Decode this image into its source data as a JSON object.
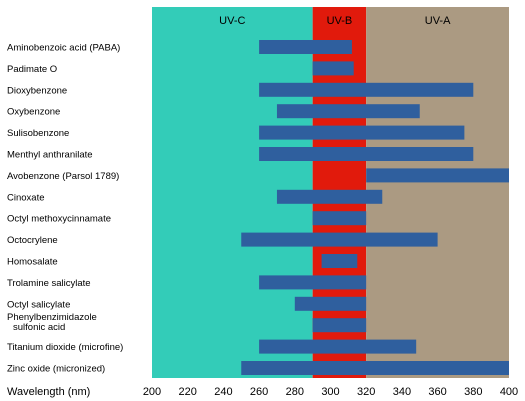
{
  "chart_data": {
    "type": "bar",
    "orientation": "horizontal-range",
    "title": "",
    "xlabel": "Wavelength (nm)",
    "ylabel": "",
    "xlim": [
      200,
      400
    ],
    "xticks": [
      200,
      220,
      240,
      260,
      280,
      300,
      320,
      340,
      360,
      380,
      400
    ],
    "regions": [
      {
        "label": "UV-C",
        "start": 200,
        "end": 290,
        "color": "#33ccb8"
      },
      {
        "label": "UV-B",
        "start": 290,
        "end": 320,
        "color": "#e11a0c"
      },
      {
        "label": "UV-A",
        "start": 320,
        "end": 400,
        "color": "#ab9a82"
      }
    ],
    "bar_color": "#2f5f9e",
    "categories": [
      {
        "label": "Aminobenzoic acid (PABA)",
        "start": 260,
        "end": 312
      },
      {
        "label": "Padimate O",
        "start": 290,
        "end": 313
      },
      {
        "label": "Dioxybenzone",
        "start": 260,
        "end": 380
      },
      {
        "label": "Oxybenzone",
        "start": 270,
        "end": 350
      },
      {
        "label": "Sulisobenzone",
        "start": 260,
        "end": 375
      },
      {
        "label": "Menthyl anthranilate",
        "start": 260,
        "end": 380
      },
      {
        "label": "Avobenzone (Parsol 1789)",
        "start": 320,
        "end": 400
      },
      {
        "label": "Cinoxate",
        "start": 270,
        "end": 329
      },
      {
        "label": "Octyl methoxycinnamate",
        "start": 290,
        "end": 320
      },
      {
        "label": "Octocrylene",
        "start": 250,
        "end": 360
      },
      {
        "label": "Homosalate",
        "start": 295,
        "end": 315
      },
      {
        "label": "Trolamine salicylate",
        "start": 260,
        "end": 320
      },
      {
        "label": "Octyl salicylate",
        "start": 280,
        "end": 320
      },
      {
        "label": "Phenylbenzimidazole sulfonic acid",
        "start": 290,
        "end": 320
      },
      {
        "label": "Titanium dioxide (microfine)",
        "start": 260,
        "end": 348
      },
      {
        "label": "Zinc oxide (micronized)",
        "start": 250,
        "end": 400
      }
    ]
  }
}
